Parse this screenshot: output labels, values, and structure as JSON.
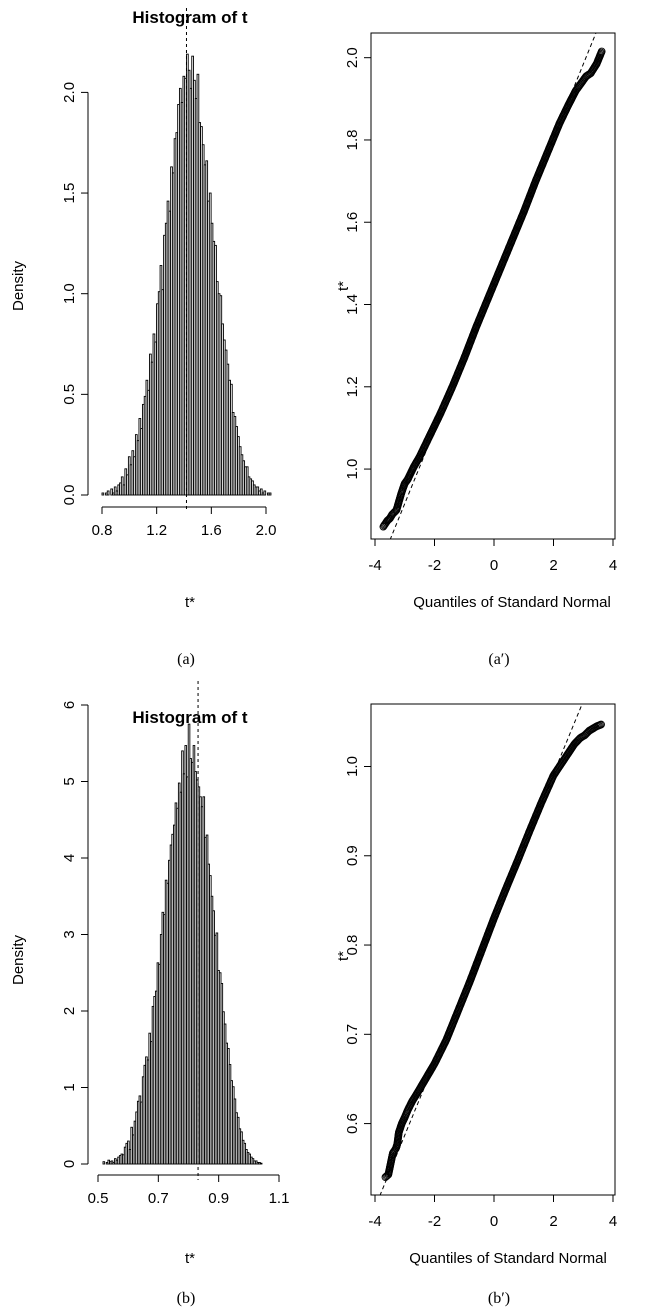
{
  "chart_data": [
    {
      "type": "bar",
      "panel_label": "(a)",
      "title": "Histogram of t",
      "xlabel": "t*",
      "ylabel": "Density",
      "xlim": [
        0.85,
        2.1
      ],
      "ylim": [
        0,
        2.3
      ],
      "x_ticks": [
        0.8,
        1.2,
        1.6,
        2.0
      ],
      "x_tick_labels": [
        "0.8",
        "1.2",
        "1.6",
        "2.0"
      ],
      "y_ticks": [
        0.0,
        0.5,
        1.0,
        1.5,
        2.0
      ],
      "y_tick_labels": [
        "0.0",
        "0.5",
        "1.0",
        "1.5",
        "2.0"
      ],
      "reference_line": 1.45,
      "bin_width": 0.0125,
      "bin_start": 0.85,
      "values": [
        0.01,
        0.0,
        0.01,
        0.02,
        0.0,
        0.03,
        0.01,
        0.04,
        0.02,
        0.05,
        0.06,
        0.09,
        0.05,
        0.13,
        0.1,
        0.19,
        0.15,
        0.22,
        0.19,
        0.3,
        0.27,
        0.38,
        0.33,
        0.45,
        0.49,
        0.57,
        0.52,
        0.7,
        0.66,
        0.8,
        0.76,
        0.95,
        1.01,
        1.14,
        1.02,
        1.29,
        1.35,
        1.46,
        1.41,
        1.63,
        1.6,
        1.77,
        1.8,
        1.94,
        2.02,
        1.95,
        2.08,
        2.07,
        2.19,
        2.11,
        2.02,
        2.18,
        2.06,
        1.97,
        2.09,
        1.85,
        1.83,
        1.74,
        1.64,
        1.66,
        1.46,
        1.5,
        1.35,
        1.26,
        1.24,
        1.06,
        1.0,
        0.99,
        0.85,
        0.77,
        0.72,
        0.65,
        0.57,
        0.55,
        0.41,
        0.39,
        0.34,
        0.29,
        0.24,
        0.2,
        0.17,
        0.14,
        0.14,
        0.09,
        0.08,
        0.07,
        0.05,
        0.04,
        0.04,
        0.02,
        0.03,
        0.01,
        0.02,
        0.0,
        0.01,
        0.01,
        0.0,
        0.0,
        0.0,
        0.0
      ]
    },
    {
      "type": "scatter",
      "panel_label": "(a′)",
      "title": "",
      "xlabel": "Quantiles of Standard Normal",
      "ylabel": "t*",
      "xlim": [
        -4,
        4
      ],
      "ylim": [
        0.83,
        2.06
      ],
      "x_ticks": [
        -4,
        -2,
        0,
        2,
        4
      ],
      "x_tick_labels": [
        "-4",
        "-2",
        "0",
        "2",
        "4"
      ],
      "y_ticks": [
        1.0,
        1.2,
        1.4,
        1.6,
        1.8,
        2.0
      ],
      "y_tick_labels": [
        "1.0",
        "1.2",
        "1.4",
        "1.6",
        "1.8",
        "2.0"
      ],
      "reference_line": {
        "intercept": 1.45,
        "slope": 0.178
      },
      "points": [
        [
          -3.72,
          0.86
        ],
        [
          -3.58,
          0.875
        ],
        [
          -3.5,
          0.88
        ],
        [
          -3.42,
          0.89
        ],
        [
          -3.35,
          0.895
        ],
        [
          -3.28,
          0.9
        ],
        [
          -3.2,
          0.92
        ],
        [
          -3.12,
          0.94
        ],
        [
          -3.05,
          0.955
        ],
        [
          -3.0,
          0.965
        ],
        [
          -2.9,
          0.975
        ],
        [
          -2.8,
          0.99
        ],
        [
          -2.7,
          1.005
        ],
        [
          -2.5,
          1.03
        ],
        [
          -2.2,
          1.075
        ],
        [
          -1.8,
          1.135
        ],
        [
          -1.4,
          1.2
        ],
        [
          -1.0,
          1.27
        ],
        [
          -0.6,
          1.345
        ],
        [
          -0.2,
          1.415
        ],
        [
          0.2,
          1.485
        ],
        [
          0.6,
          1.555
        ],
        [
          1.0,
          1.625
        ],
        [
          1.4,
          1.7
        ],
        [
          1.8,
          1.77
        ],
        [
          2.2,
          1.84
        ],
        [
          2.5,
          1.885
        ],
        [
          2.75,
          1.92
        ],
        [
          2.9,
          1.935
        ],
        [
          3.0,
          1.945
        ],
        [
          3.1,
          1.955
        ],
        [
          3.25,
          1.962
        ],
        [
          3.45,
          1.985
        ],
        [
          3.62,
          2.015
        ]
      ]
    },
    {
      "type": "bar",
      "panel_label": "(b)",
      "title": "Histogram of t",
      "xlabel": "t*",
      "ylabel": "Density",
      "xlim": [
        0.54,
        1.08
      ],
      "ylim": [
        0,
        6
      ],
      "x_ticks": [
        0.5,
        0.7,
        0.9,
        1.1
      ],
      "x_tick_labels": [
        "0.5",
        "0.7",
        "0.9",
        "1.1"
      ],
      "y_ticks": [
        0,
        1,
        2,
        3,
        4,
        5,
        6
      ],
      "y_tick_labels": [
        "0",
        "1",
        "2",
        "3",
        "4",
        "5",
        "6"
      ],
      "reference_line": 0.83,
      "bin_width": 0.005,
      "bin_start": 0.54,
      "values": [
        0.03,
        0.0,
        0.02,
        0.05,
        0.03,
        0.04,
        0.02,
        0.07,
        0.05,
        0.09,
        0.11,
        0.13,
        0.12,
        0.22,
        0.27,
        0.3,
        0.19,
        0.48,
        0.38,
        0.56,
        0.68,
        0.82,
        0.89,
        0.81,
        1.14,
        1.29,
        1.4,
        1.36,
        1.71,
        1.6,
        2.06,
        2.19,
        2.26,
        2.63,
        2.61,
        3.0,
        3.29,
        3.26,
        3.71,
        3.67,
        3.97,
        4.17,
        4.31,
        4.43,
        4.72,
        4.65,
        4.98,
        4.86,
        5.4,
        5.1,
        5.47,
        5.06,
        5.75,
        5.3,
        5.25,
        5.47,
        5.13,
        5.02,
        4.93,
        4.8,
        4.67,
        4.8,
        4.27,
        4.3,
        3.92,
        3.77,
        3.5,
        3.31,
        2.99,
        3.02,
        2.53,
        2.5,
        2.36,
        1.99,
        1.83,
        1.58,
        1.51,
        1.3,
        1.09,
        1.01,
        0.85,
        0.67,
        0.61,
        0.46,
        0.42,
        0.31,
        0.27,
        0.19,
        0.15,
        0.13,
        0.09,
        0.07,
        0.04,
        0.04,
        0.02,
        0.02,
        0.01,
        0.0,
        0.0,
        0.0,
        0.0,
        0.0,
        0.0,
        0.0,
        0.0,
        0.0,
        0.0,
        0.0
      ]
    },
    {
      "type": "scatter",
      "panel_label": "(b′)",
      "title": "",
      "xlabel": "Quantiles of Standard Normal",
      "ylabel": "t*",
      "xlim": [
        -4,
        4
      ],
      "ylim": [
        0.52,
        1.07
      ],
      "x_ticks": [
        -4,
        -2,
        0,
        2,
        4
      ],
      "x_tick_labels": [
        "-4",
        "-2",
        "0",
        "2",
        "4"
      ],
      "y_ticks": [
        0.6,
        0.7,
        0.8,
        0.9,
        1.0
      ],
      "y_tick_labels": [
        "0.6",
        "0.7",
        "0.8",
        "0.9",
        "1.0"
      ],
      "reference_line": {
        "intercept": 0.83,
        "slope": 0.081
      },
      "points": [
        [
          -3.65,
          0.54
        ],
        [
          -3.55,
          0.543
        ],
        [
          -3.4,
          0.567
        ],
        [
          -3.3,
          0.572
        ],
        [
          -3.25,
          0.577
        ],
        [
          -3.2,
          0.59
        ],
        [
          -3.1,
          0.6
        ],
        [
          -3.0,
          0.607
        ],
        [
          -2.9,
          0.615
        ],
        [
          -2.75,
          0.625
        ],
        [
          -2.6,
          0.633
        ],
        [
          -2.3,
          0.65
        ],
        [
          -2.0,
          0.667
        ],
        [
          -1.6,
          0.694
        ],
        [
          -1.2,
          0.727
        ],
        [
          -0.8,
          0.76
        ],
        [
          -0.4,
          0.795
        ],
        [
          0.0,
          0.83
        ],
        [
          0.4,
          0.863
        ],
        [
          0.8,
          0.895
        ],
        [
          1.2,
          0.928
        ],
        [
          1.6,
          0.96
        ],
        [
          2.0,
          0.99
        ],
        [
          2.3,
          1.005
        ],
        [
          2.5,
          1.015
        ],
        [
          2.7,
          1.025
        ],
        [
          2.9,
          1.032
        ],
        [
          3.05,
          1.035
        ],
        [
          3.2,
          1.04
        ],
        [
          3.45,
          1.045
        ],
        [
          3.6,
          1.047
        ]
      ]
    }
  ]
}
